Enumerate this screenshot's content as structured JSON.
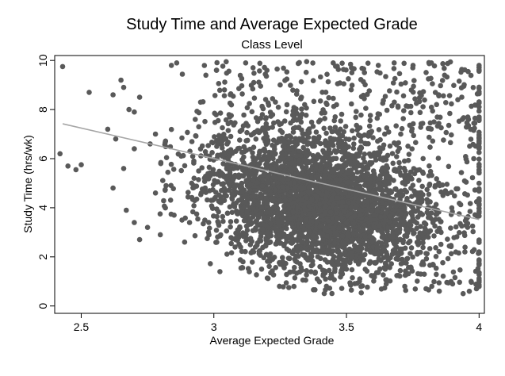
{
  "chart_data": {
    "type": "scatter",
    "title": "Study Time and Average Expected Grade",
    "subtitle": "Class Level",
    "xlabel": "Average Expected Grade",
    "ylabel": "Study Time (hrs/wk)",
    "xlim": [
      2.4,
      4.02
    ],
    "ylim": [
      -0.3,
      10.2
    ],
    "xticks": [
      2.5,
      3,
      3.5,
      4
    ],
    "xtick_labels": [
      "2.5",
      "3",
      "3.5",
      "4"
    ],
    "yticks": [
      0,
      2,
      4,
      6,
      8,
      10
    ],
    "ytick_labels": [
      "0",
      "2",
      "4",
      "6",
      "8",
      "10"
    ],
    "grid": false,
    "legend": "none",
    "colors": {
      "points": "#595959",
      "fit_line": "#a6a6a6",
      "frame": "#000000"
    },
    "series": [
      {
        "type": "scatter",
        "points": [
          [
            2.43,
            9.75
          ],
          [
            2.42,
            6.2
          ],
          [
            2.45,
            5.7
          ],
          [
            2.48,
            5.55
          ],
          [
            2.5,
            5.75
          ],
          [
            2.53,
            8.7
          ],
          [
            2.6,
            7.2
          ],
          [
            2.62,
            8.6
          ],
          [
            2.65,
            9.2
          ],
          [
            2.66,
            8.9
          ],
          [
            2.68,
            8.0
          ],
          [
            2.7,
            7.9
          ],
          [
            2.72,
            8.5
          ],
          [
            2.63,
            6.8
          ],
          [
            2.7,
            6.4
          ],
          [
            2.66,
            5.6
          ],
          [
            2.62,
            4.8
          ],
          [
            2.67,
            3.9
          ],
          [
            2.7,
            3.4
          ],
          [
            2.72,
            2.7
          ],
          [
            2.75,
            3.2
          ],
          [
            2.76,
            6.6
          ],
          [
            2.78,
            7.0
          ],
          [
            2.8,
            5.8
          ],
          [
            2.78,
            4.6
          ],
          [
            2.82,
            4.9
          ],
          [
            2.84,
            9.8
          ],
          [
            2.86,
            9.9
          ],
          [
            2.85,
            3.7
          ],
          [
            2.88,
            3.5
          ],
          [
            2.89,
            2.6
          ],
          [
            2.91,
            6.3
          ],
          [
            2.93,
            7.6
          ],
          [
            2.95,
            8.3
          ],
          [
            2.97,
            9.4
          ],
          [
            2.98,
            3.0
          ],
          [
            2.99,
            4.3
          ],
          [
            3.01,
            9.6
          ],
          [
            3.04,
            8.8
          ],
          [
            3.06,
            7.7
          ],
          [
            3.08,
            2.4
          ],
          [
            3.11,
            1.8
          ],
          [
            3.12,
            9.9
          ],
          [
            3.15,
            2.2
          ],
          [
            3.18,
            1.5
          ],
          [
            3.25,
            1.7
          ],
          [
            3.3,
            1.4
          ],
          [
            3.35,
            9.95
          ],
          [
            3.4,
            1.6
          ],
          [
            3.45,
            9.9
          ],
          [
            3.5,
            1.5
          ],
          [
            3.55,
            1.1
          ],
          [
            3.6,
            1.2
          ],
          [
            3.62,
            9.8
          ],
          [
            3.65,
            0.9
          ],
          [
            3.68,
            9.9
          ],
          [
            3.72,
            0.8
          ],
          [
            3.75,
            9.7
          ],
          [
            3.78,
            1.3
          ],
          [
            3.8,
            0.7
          ],
          [
            3.82,
            9.9
          ],
          [
            3.85,
            0.6
          ],
          [
            3.87,
            9.4
          ],
          [
            3.9,
            0.9
          ],
          [
            3.92,
            8.4
          ],
          [
            3.94,
            0.5
          ],
          [
            3.96,
            7.6
          ],
          [
            3.97,
            1.0
          ],
          [
            3.98,
            6.0
          ],
          [
            3.99,
            0.7
          ],
          [
            4.0,
            9.8
          ],
          [
            4.0,
            9.6
          ]
        ]
      },
      {
        "type": "line",
        "x": [
          2.43,
          4.0
        ],
        "y": [
          7.42,
          3.52
        ]
      }
    ]
  }
}
